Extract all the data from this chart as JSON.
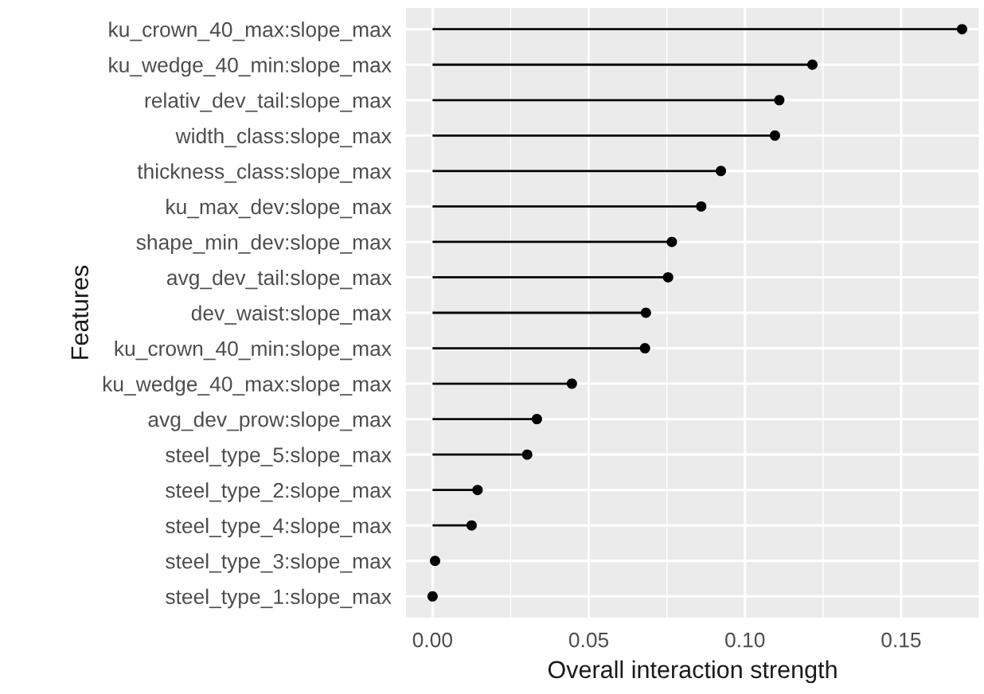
{
  "chart_data": {
    "type": "lollipop",
    "orientation": "horizontal",
    "xlabel": "Overall interaction strength",
    "ylabel": "Features",
    "categories": [
      "ku_crown_40_max:slope_max",
      "ku_wedge_40_min:slope_max",
      "relativ_dev_tail:slope_max",
      "width_class:slope_max",
      "thickness_class:slope_max",
      "ku_max_dev:slope_max",
      "shape_min_dev:slope_max",
      "avg_dev_tail:slope_max",
      "dev_waist:slope_max",
      "ku_crown_40_min:slope_max",
      "ku_wedge_40_max:slope_max",
      "avg_dev_prow:slope_max",
      "steel_type_5:slope_max",
      "steel_type_2:slope_max",
      "steel_type_4:slope_max",
      "steel_type_3:slope_max",
      "steel_type_1:slope_max"
    ],
    "values": [
      0.1695,
      0.1216,
      0.111,
      0.1096,
      0.0923,
      0.086,
      0.0766,
      0.0754,
      0.0683,
      0.068,
      0.0446,
      0.0334,
      0.0303,
      0.0144,
      0.0125,
      0.0008,
      0.0
    ],
    "color": "#000000",
    "marker": "circle",
    "xlim": [
      -0.0085,
      0.174
    ],
    "xticks": [
      {
        "value": 0,
        "label": "0.00"
      },
      {
        "value": 0.05,
        "label": "0.05"
      },
      {
        "value": 0.1,
        "label": "0.10"
      },
      {
        "value": 0.15,
        "label": "0.15"
      }
    ],
    "grid": true
  }
}
